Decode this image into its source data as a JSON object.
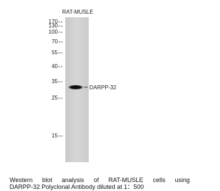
{
  "lane_label": "RAT-MUSLE",
  "markers": [
    "170",
    "130",
    "100",
    "70",
    "55",
    "40",
    "35",
    "25",
    "15"
  ],
  "band_label": "DARPP-32",
  "caption": [
    "Western blot analysis of RAT-MUSLE cells using",
    "DARPP-32 Polyclonal Antibody diluted at 1：500"
  ]
}
